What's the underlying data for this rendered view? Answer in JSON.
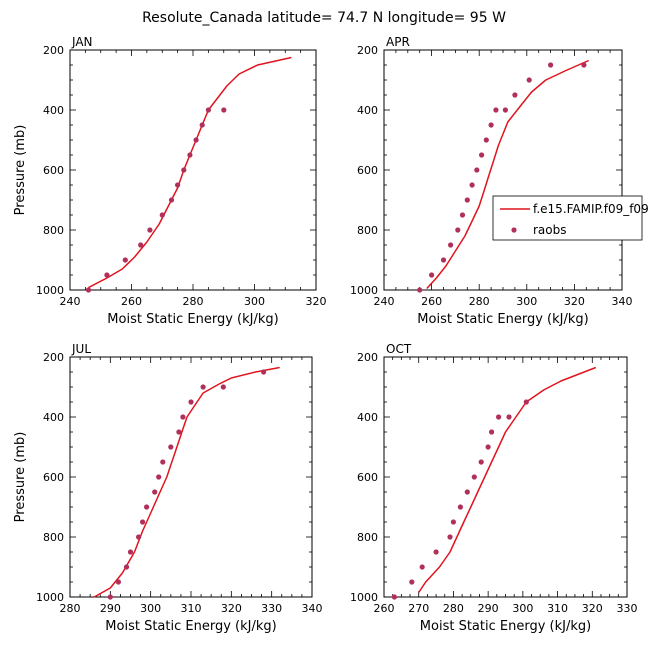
{
  "title": "Resolute_Canada  latitude= 74.7 N longitude= 95 W",
  "colors": {
    "model": "#e0141e",
    "obs": "#b0305a"
  },
  "legend": {
    "model_label": "f.e15.FAMIP.f09_f09",
    "obs_label": "raobs"
  },
  "chart_data": [
    {
      "type": "line",
      "panel": "JAN",
      "title": "JAN",
      "xlabel": "Moist Static Energy (kJ/kg)",
      "ylabel": "Pressure (mb)",
      "xlim": [
        240,
        320
      ],
      "ylim": [
        1000,
        200
      ],
      "xticks": [
        240,
        260,
        280,
        300,
        320
      ],
      "yticks": [
        200,
        400,
        600,
        800,
        1000
      ],
      "series": [
        {
          "name": "f.e15.FAMIP.f09_f09",
          "kind": "line",
          "x": [
            246,
            252,
            257,
            261,
            265,
            269,
            272,
            275,
            277,
            279,
            281,
            283,
            285,
            288,
            291,
            295,
            301,
            312
          ],
          "y": [
            992,
            960,
            930,
            890,
            840,
            780,
            720,
            660,
            600,
            550,
            500,
            450,
            400,
            360,
            320,
            280,
            250,
            225
          ]
        },
        {
          "name": "raobs",
          "kind": "scatter",
          "x": [
            246,
            252,
            258,
            263,
            266,
            270,
            273,
            275,
            277,
            279,
            281,
            283,
            285,
            290
          ],
          "y": [
            1000,
            950,
            900,
            850,
            800,
            750,
            700,
            650,
            600,
            550,
            500,
            450,
            400,
            400
          ]
        }
      ]
    },
    {
      "type": "line",
      "panel": "APR",
      "title": "APR",
      "xlabel": "Moist Static Energy (kJ/kg)",
      "ylabel": "",
      "xlim": [
        240,
        340
      ],
      "ylim": [
        1000,
        200
      ],
      "xticks": [
        240,
        260,
        280,
        300,
        320,
        340
      ],
      "yticks": [
        200,
        400,
        600,
        800,
        1000
      ],
      "series": [
        {
          "name": "f.e15.FAMIP.f09_f09",
          "kind": "line",
          "x": [
            258,
            262,
            266,
            270,
            274,
            277,
            280,
            282,
            284,
            286,
            288,
            290,
            292,
            295,
            298,
            302,
            308,
            316,
            326
          ],
          "y": [
            995,
            960,
            920,
            870,
            820,
            770,
            720,
            670,
            620,
            570,
            520,
            480,
            440,
            410,
            380,
            340,
            300,
            270,
            235
          ]
        },
        {
          "name": "raobs",
          "kind": "scatter",
          "x": [
            255,
            260,
            265,
            268,
            271,
            273,
            275,
            277,
            279,
            281,
            283,
            285,
            287,
            291,
            295,
            301,
            310,
            324
          ],
          "y": [
            1000,
            950,
            900,
            850,
            800,
            750,
            700,
            650,
            600,
            550,
            500,
            450,
            400,
            400,
            350,
            300,
            250,
            250
          ]
        }
      ]
    },
    {
      "type": "line",
      "panel": "JUL",
      "title": "JUL",
      "xlabel": "Moist Static Energy (kJ/kg)",
      "ylabel": "Pressure (mb)",
      "xlim": [
        280,
        340
      ],
      "ylim": [
        1000,
        200
      ],
      "xticks": [
        280,
        290,
        300,
        310,
        320,
        330,
        340
      ],
      "yticks": [
        200,
        400,
        600,
        800,
        1000
      ],
      "series": [
        {
          "name": "f.e15.FAMIP.f09_f09",
          "kind": "line",
          "x": [
            286,
            290,
            293,
            296,
            298,
            300,
            302,
            304,
            305,
            306,
            307,
            308,
            309,
            310,
            313,
            317,
            320,
            326,
            332
          ],
          "y": [
            1000,
            970,
            920,
            850,
            780,
            720,
            660,
            600,
            560,
            520,
            480,
            440,
            400,
            380,
            320,
            290,
            270,
            250,
            235
          ]
        },
        {
          "name": "raobs",
          "kind": "scatter",
          "x": [
            290,
            292,
            294,
            295,
            297,
            298,
            299,
            301,
            302,
            303,
            305,
            307,
            308,
            310,
            313,
            318,
            328
          ],
          "y": [
            1000,
            950,
            900,
            850,
            800,
            750,
            700,
            650,
            600,
            550,
            500,
            450,
            400,
            350,
            300,
            300,
            250
          ]
        }
      ]
    },
    {
      "type": "line",
      "panel": "OCT",
      "title": "OCT",
      "xlabel": "Moist Static Energy (kJ/kg)",
      "ylabel": "",
      "xlim": [
        260,
        330
      ],
      "ylim": [
        1000,
        200
      ],
      "xticks": [
        260,
        270,
        280,
        290,
        300,
        310,
        320,
        330
      ],
      "yticks": [
        200,
        400,
        600,
        800,
        1000
      ],
      "series": [
        {
          "name": "f.e15.FAMIP.f09_f09",
          "kind": "line",
          "x": [
            270,
            272,
            276,
            279,
            281,
            283,
            285,
            287,
            289,
            291,
            293,
            295,
            298,
            301,
            306,
            311,
            321
          ],
          "y": [
            985,
            950,
            900,
            850,
            800,
            750,
            700,
            650,
            600,
            550,
            500,
            450,
            400,
            350,
            310,
            280,
            235
          ]
        },
        {
          "name": "raobs",
          "kind": "scatter",
          "x": [
            263,
            268,
            271,
            275,
            279,
            280,
            282,
            284,
            286,
            288,
            290,
            291,
            293,
            296,
            301
          ],
          "y": [
            1000,
            950,
            900,
            850,
            800,
            750,
            700,
            650,
            600,
            550,
            500,
            450,
            400,
            400,
            350
          ]
        }
      ]
    }
  ]
}
